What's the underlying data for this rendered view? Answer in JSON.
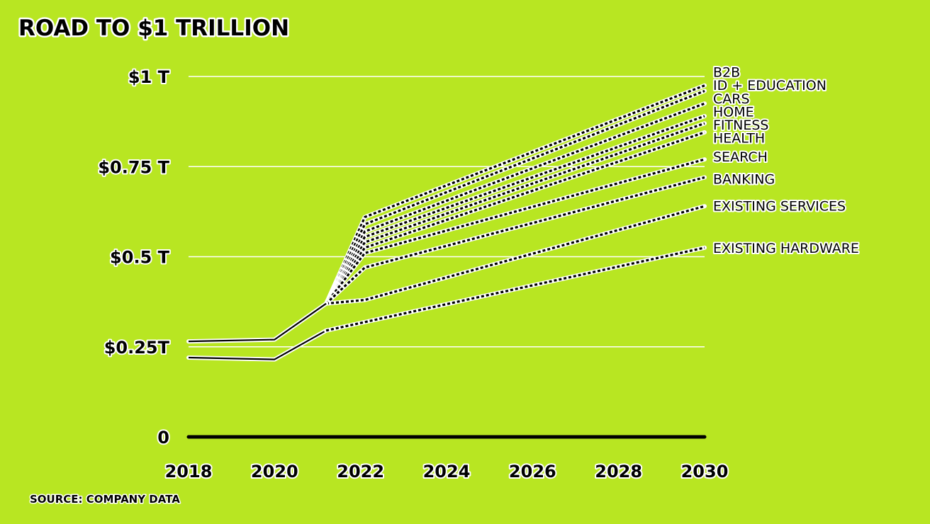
{
  "chart_data": {
    "type": "line",
    "title": "ROAD TO $1 TRILLION",
    "source": "SOURCE: COMPANY DATA",
    "x_ticks": [
      "2018",
      "2020",
      "2022",
      "2024",
      "2026",
      "2028",
      "2030"
    ],
    "y_ticks": [
      {
        "value": 0,
        "label": "0"
      },
      {
        "value": 0.25,
        "label": "$0.25T"
      },
      {
        "value": 0.5,
        "label": "$0.5 T"
      },
      {
        "value": 0.75,
        "label": "$0.75 T"
      },
      {
        "value": 1,
        "label": "$1 T"
      }
    ],
    "xlim": [
      2018,
      2030
    ],
    "ylim": [
      0,
      1
    ],
    "grid": true,
    "line_colors": {
      "line": "#000000",
      "halo": "#ffffff"
    },
    "series": [
      {
        "name": "B2B",
        "values": [
          [
            2021.2,
            0.37
          ],
          [
            2022.1,
            0.61
          ],
          [
            2030,
            0.975
          ]
        ]
      },
      {
        "name": "ID + EDUCATION",
        "values": [
          [
            2021.2,
            0.37
          ],
          [
            2022.1,
            0.59
          ],
          [
            2030,
            0.96
          ]
        ]
      },
      {
        "name": "CARS",
        "values": [
          [
            2021.2,
            0.37
          ],
          [
            2022.1,
            0.57
          ],
          [
            2030,
            0.925
          ]
        ]
      },
      {
        "name": "HOME",
        "values": [
          [
            2021.2,
            0.37
          ],
          [
            2022.1,
            0.555
          ],
          [
            2030,
            0.89
          ]
        ]
      },
      {
        "name": "FITNESS",
        "values": [
          [
            2021.2,
            0.37
          ],
          [
            2022.1,
            0.54
          ],
          [
            2030,
            0.87
          ]
        ]
      },
      {
        "name": "HEALTH",
        "values": [
          [
            2021.2,
            0.37
          ],
          [
            2022.1,
            0.525
          ],
          [
            2030,
            0.845
          ]
        ]
      },
      {
        "name": "SEARCH",
        "values": [
          [
            2021.2,
            0.37
          ],
          [
            2022.1,
            0.51
          ],
          [
            2030,
            0.77
          ]
        ]
      },
      {
        "name": "BANKING",
        "values": [
          [
            2021.2,
            0.37
          ],
          [
            2022.1,
            0.47
          ],
          [
            2030,
            0.72
          ]
        ]
      },
      {
        "name": "EXISTING SERVICES",
        "values": [
          [
            2021.2,
            0.37
          ],
          [
            2022.1,
            0.38
          ],
          [
            2030,
            0.64
          ]
        ]
      },
      {
        "name": "EXISTING HARDWARE",
        "values": [
          [
            2018,
            0.22
          ],
          [
            2020,
            0.215
          ],
          [
            2021.2,
            0.295
          ],
          [
            2030,
            0.525
          ]
        ]
      },
      {
        "name": "",
        "values": [
          [
            2018,
            0.265
          ],
          [
            2020,
            0.27
          ],
          [
            2021.2,
            0.37
          ]
        ]
      }
    ],
    "label_y": {
      "B2B": 1.013,
      "ID + EDUCATION": 0.976,
      "CARS": 0.939,
      "HOME": 0.903,
      "FITNESS": 0.866,
      "HEALTH": 0.83,
      "SEARCH": 0.778,
      "BANKING": 0.716,
      "EXISTING SERVICES": 0.641,
      "EXISTING HARDWARE": 0.525
    }
  }
}
